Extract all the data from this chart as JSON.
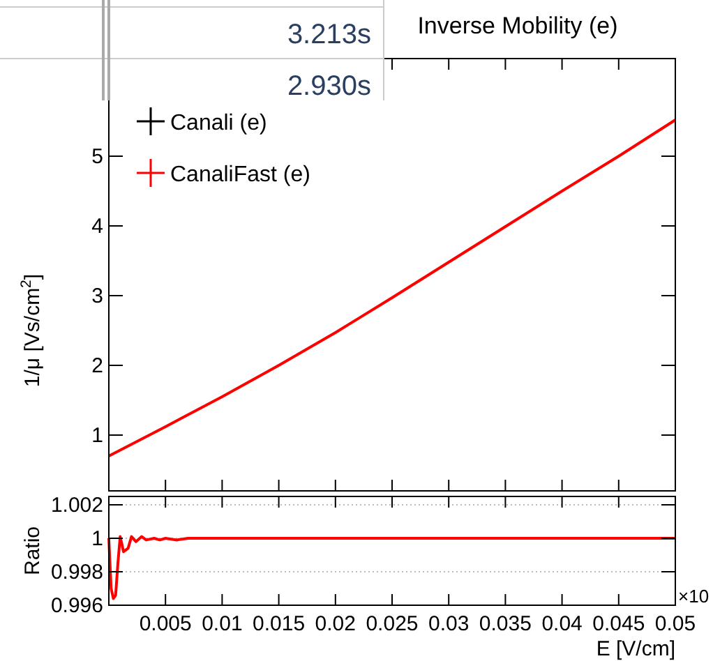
{
  "chart_data": [
    {
      "type": "line",
      "title": "Inverse Mobility (e)",
      "ylabel": "1/μ [Vs/cm$^{2}$]",
      "annotations": [
        "3.213s",
        "2.930s"
      ],
      "x": [
        0,
        0.005,
        0.01,
        0.015,
        0.02,
        0.025,
        0.03,
        0.035,
        0.04,
        0.045,
        0.05
      ],
      "series": [
        {
          "name": "Canali (e)",
          "color": "#000000",
          "values": [
            null,
            null,
            null,
            null,
            null,
            null,
            null,
            null,
            null,
            null,
            null
          ]
        },
        {
          "name": "CanaliFast (e)",
          "color": "#ff0000",
          "values": [
            0.7,
            1.12,
            1.55,
            2.0,
            2.47,
            2.97,
            3.48,
            3.99,
            4.5,
            5.0,
            5.52
          ]
        }
      ],
      "xlim": [
        0,
        0.05
      ],
      "ylim": [
        0.2,
        6.4
      ],
      "xticks": [
        0.005,
        0.01,
        0.015,
        0.02,
        0.025,
        0.03,
        0.035,
        0.04,
        0.045,
        0.05
      ],
      "yticks": [
        1,
        2,
        3,
        4,
        5
      ],
      "tick_labels": "y",
      "legend": "top left"
    },
    {
      "type": "line",
      "xlabel": "E [V/cm]",
      "ylabel": "Ratio",
      "annotations": [
        "×10"
      ],
      "x": [
        0,
        0.0002,
        0.0004,
        0.0006,
        0.0008,
        0.001,
        0.0013,
        0.0017,
        0.002,
        0.0024,
        0.0029,
        0.0033,
        0.004,
        0.0045,
        0.005,
        0.006,
        0.007,
        0.008,
        0.01,
        0.02,
        0.03,
        0.04,
        0.05
      ],
      "series": [
        {
          "color": "#ff0000",
          "values": [
            1.0,
            0.997,
            0.9964,
            0.9966,
            0.9985,
            1.0001,
            0.9992,
            0.9994,
            1.0001,
            0.9998,
            1.0001,
            0.9999,
            1.0,
            0.9999,
            1.0,
            0.9999,
            1.0,
            1.0,
            1.0,
            1.0,
            1.0,
            1.0,
            1.0
          ]
        }
      ],
      "xlim": [
        0,
        0.05
      ],
      "ylim": [
        0.996,
        1.0025
      ],
      "xticks": [
        0.005,
        0.01,
        0.015,
        0.02,
        0.025,
        0.03,
        0.035,
        0.04,
        0.045,
        0.05
      ],
      "yticks": [
        0.996,
        0.998,
        1,
        1.002
      ],
      "grid": "y"
    }
  ]
}
